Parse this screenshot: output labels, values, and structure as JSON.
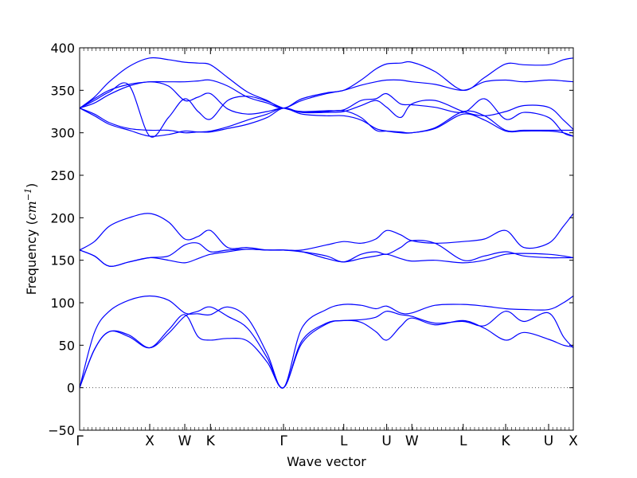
{
  "chart_data": {
    "type": "line",
    "title": "",
    "xlabel": "Wave vector",
    "ylabel": "Frequency (cm⁻¹)",
    "ylabel_main": "Frequency (",
    "ylabel_unit": "cm",
    "ylabel_sup": "−1",
    "ylabel_close": ")",
    "ylim": [
      -50,
      400
    ],
    "xlim": [
      0,
      1
    ],
    "yticks": [
      -50,
      0,
      50,
      100,
      150,
      200,
      250,
      300,
      350,
      400
    ],
    "grid": false,
    "legend": "none",
    "line_color": "#0000ff",
    "zero_line": {
      "y": 0,
      "style": "dotted",
      "color": "#555555"
    },
    "kpoints": [
      {
        "label": "Γ",
        "x": 0.0
      },
      {
        "label": "X",
        "x": 0.142
      },
      {
        "label": "W",
        "x": 0.213
      },
      {
        "label": "K",
        "x": 0.265
      },
      {
        "label": "Γ",
        "x": 0.413
      },
      {
        "label": "L",
        "x": 0.535
      },
      {
        "label": "U",
        "x": 0.622
      },
      {
        "label": "W",
        "x": 0.673
      },
      {
        "label": "L",
        "x": 0.777
      },
      {
        "label": "K",
        "x": 0.863
      },
      {
        "label": "U",
        "x": 0.95
      },
      {
        "label": "X",
        "x": 1.0
      }
    ],
    "series": [
      {
        "x": [
          0,
          0.03,
          0.06,
          0.1,
          0.142,
          0.18,
          0.213,
          0.24,
          0.265,
          0.3,
          0.34,
          0.38,
          0.413,
          0.45,
          0.5,
          0.535,
          0.57,
          0.6,
          0.622,
          0.65,
          0.673,
          0.72,
          0.777,
          0.82,
          0.863,
          0.9,
          0.95,
          0.98,
          1.0
        ],
        "y": [
          0,
          45,
          66,
          60,
          47,
          68,
          86,
          60,
          56,
          58,
          55,
          30,
          0,
          52,
          75,
          79,
          77,
          66,
          56,
          72,
          82,
          74,
          79,
          70,
          56,
          65,
          57,
          50,
          48
        ]
      },
      {
        "x": [
          0,
          0.03,
          0.06,
          0.1,
          0.142,
          0.18,
          0.213,
          0.24,
          0.265,
          0.3,
          0.34,
          0.38,
          0.413,
          0.45,
          0.5,
          0.535,
          0.57,
          0.6,
          0.622,
          0.65,
          0.673,
          0.72,
          0.777,
          0.82,
          0.863,
          0.9,
          0.95,
          0.98,
          1.0
        ],
        "y": [
          0,
          45,
          66,
          62,
          47,
          64,
          84,
          90,
          95,
          84,
          70,
          35,
          0,
          55,
          76,
          79,
          80,
          83,
          90,
          86,
          84,
          76,
          78,
          73,
          90,
          78,
          88,
          60,
          47
        ]
      },
      {
        "x": [
          0,
          0.03,
          0.06,
          0.1,
          0.142,
          0.18,
          0.213,
          0.24,
          0.265,
          0.3,
          0.34,
          0.38,
          0.413,
          0.45,
          0.5,
          0.535,
          0.57,
          0.6,
          0.622,
          0.65,
          0.673,
          0.72,
          0.777,
          0.82,
          0.863,
          0.9,
          0.95,
          0.98,
          1.0
        ],
        "y": [
          0,
          65,
          90,
          103,
          108,
          103,
          88,
          87,
          86,
          95,
          82,
          40,
          0,
          70,
          92,
          98,
          97,
          93,
          96,
          88,
          88,
          97,
          98,
          96,
          93,
          92,
          92,
          100,
          108
        ]
      },
      {
        "x": [
          0,
          0.03,
          0.06,
          0.1,
          0.142,
          0.18,
          0.213,
          0.24,
          0.265,
          0.3,
          0.34,
          0.38,
          0.413,
          0.45,
          0.5,
          0.535,
          0.57,
          0.6,
          0.622,
          0.65,
          0.673,
          0.72,
          0.777,
          0.82,
          0.863,
          0.9,
          0.95,
          0.98,
          1.0
        ],
        "y": [
          162,
          155,
          143,
          148,
          153,
          150,
          147,
          152,
          157,
          160,
          163,
          162,
          162,
          160,
          152,
          148,
          152,
          155,
          157,
          152,
          149,
          150,
          147,
          150,
          157,
          158,
          157,
          155,
          153
        ]
      },
      {
        "x": [
          0,
          0.03,
          0.06,
          0.1,
          0.142,
          0.18,
          0.213,
          0.24,
          0.265,
          0.3,
          0.34,
          0.38,
          0.413,
          0.45,
          0.5,
          0.535,
          0.57,
          0.6,
          0.622,
          0.65,
          0.673,
          0.72,
          0.777,
          0.82,
          0.863,
          0.9,
          0.95,
          0.98,
          1.0
        ],
        "y": [
          162,
          155,
          143,
          148,
          153,
          155,
          168,
          170,
          160,
          162,
          163,
          162,
          162,
          160,
          155,
          148,
          157,
          160,
          157,
          165,
          173,
          170,
          150,
          155,
          160,
          155,
          153,
          153,
          153
        ]
      },
      {
        "x": [
          0,
          0.03,
          0.06,
          0.1,
          0.142,
          0.18,
          0.213,
          0.24,
          0.265,
          0.3,
          0.34,
          0.38,
          0.413,
          0.45,
          0.5,
          0.535,
          0.57,
          0.6,
          0.622,
          0.65,
          0.673,
          0.72,
          0.777,
          0.82,
          0.863,
          0.9,
          0.95,
          0.98,
          1.0
        ],
        "y": [
          162,
          172,
          190,
          200,
          205,
          195,
          175,
          178,
          185,
          165,
          165,
          162,
          162,
          162,
          168,
          172,
          170,
          175,
          185,
          180,
          173,
          170,
          172,
          175,
          185,
          165,
          170,
          190,
          205
        ]
      },
      {
        "x": [
          0,
          0.03,
          0.06,
          0.1,
          0.142,
          0.18,
          0.213,
          0.24,
          0.265,
          0.3,
          0.34,
          0.38,
          0.413,
          0.45,
          0.5,
          0.535,
          0.57,
          0.6,
          0.622,
          0.65,
          0.673,
          0.72,
          0.777,
          0.82,
          0.863,
          0.9,
          0.95,
          0.98,
          1.0
        ],
        "y": [
          329,
          320,
          310,
          303,
          296,
          298,
          302,
          301,
          302,
          307,
          315,
          322,
          329,
          322,
          320,
          320,
          315,
          305,
          302,
          300,
          300,
          305,
          322,
          315,
          302,
          302,
          302,
          300,
          296
        ]
      },
      {
        "x": [
          0,
          0.03,
          0.06,
          0.1,
          0.142,
          0.18,
          0.213,
          0.24,
          0.265,
          0.3,
          0.34,
          0.38,
          0.413,
          0.45,
          0.5,
          0.535,
          0.57,
          0.6,
          0.622,
          0.65,
          0.673,
          0.72,
          0.777,
          0.82,
          0.863,
          0.9,
          0.95,
          0.98,
          1.0
        ],
        "y": [
          329,
          322,
          312,
          305,
          303,
          303,
          300,
          301,
          301,
          305,
          310,
          318,
          329,
          324,
          325,
          326,
          318,
          303,
          302,
          301,
          300,
          306,
          325,
          320,
          303,
          303,
          303,
          303,
          303
        ]
      },
      {
        "x": [
          0,
          0.03,
          0.06,
          0.1,
          0.142,
          0.18,
          0.213,
          0.24,
          0.265,
          0.3,
          0.34,
          0.38,
          0.413,
          0.45,
          0.5,
          0.535,
          0.57,
          0.6,
          0.622,
          0.65,
          0.673,
          0.72,
          0.777,
          0.82,
          0.863,
          0.9,
          0.95,
          0.98,
          1.0
        ],
        "y": [
          329,
          335,
          345,
          355,
          360,
          355,
          338,
          342,
          346,
          328,
          322,
          325,
          329,
          324,
          324,
          325,
          332,
          338,
          330,
          318,
          334,
          338,
          325,
          320,
          325,
          332,
          330,
          315,
          304
        ]
      },
      {
        "x": [
          0,
          0.03,
          0.06,
          0.1,
          0.142,
          0.18,
          0.213,
          0.24,
          0.265,
          0.3,
          0.34,
          0.38,
          0.413,
          0.45,
          0.5,
          0.535,
          0.57,
          0.6,
          0.622,
          0.65,
          0.673,
          0.72,
          0.777,
          0.82,
          0.863,
          0.9,
          0.95,
          0.98,
          1.0
        ],
        "y": [
          329,
          338,
          348,
          356,
          296,
          318,
          340,
          325,
          316,
          338,
          343,
          337,
          329,
          325,
          326,
          327,
          338,
          340,
          346,
          334,
          333,
          330,
          324,
          340,
          316,
          324,
          318,
          300,
          296
        ]
      },
      {
        "x": [
          0,
          0.03,
          0.06,
          0.1,
          0.142,
          0.18,
          0.213,
          0.24,
          0.265,
          0.3,
          0.34,
          0.38,
          0.413,
          0.45,
          0.5,
          0.535,
          0.57,
          0.6,
          0.622,
          0.65,
          0.673,
          0.72,
          0.777,
          0.82,
          0.863,
          0.9,
          0.95,
          0.98,
          1.0
        ],
        "y": [
          329,
          340,
          350,
          357,
          360,
          360,
          360,
          361,
          362,
          355,
          342,
          335,
          329,
          338,
          346,
          350,
          356,
          360,
          362,
          362,
          360,
          357,
          350,
          360,
          362,
          360,
          362,
          361,
          360
        ]
      },
      {
        "x": [
          0,
          0.03,
          0.06,
          0.1,
          0.142,
          0.18,
          0.213,
          0.24,
          0.265,
          0.3,
          0.34,
          0.38,
          0.413,
          0.45,
          0.5,
          0.535,
          0.57,
          0.6,
          0.622,
          0.65,
          0.673,
          0.72,
          0.777,
          0.82,
          0.863,
          0.9,
          0.95,
          0.98,
          1.0
        ],
        "y": [
          329,
          342,
          360,
          378,
          388,
          386,
          383,
          382,
          380,
          365,
          348,
          338,
          329,
          340,
          347,
          350,
          362,
          375,
          381,
          382,
          383,
          372,
          350,
          365,
          381,
          380,
          380,
          386,
          388
        ]
      }
    ]
  }
}
